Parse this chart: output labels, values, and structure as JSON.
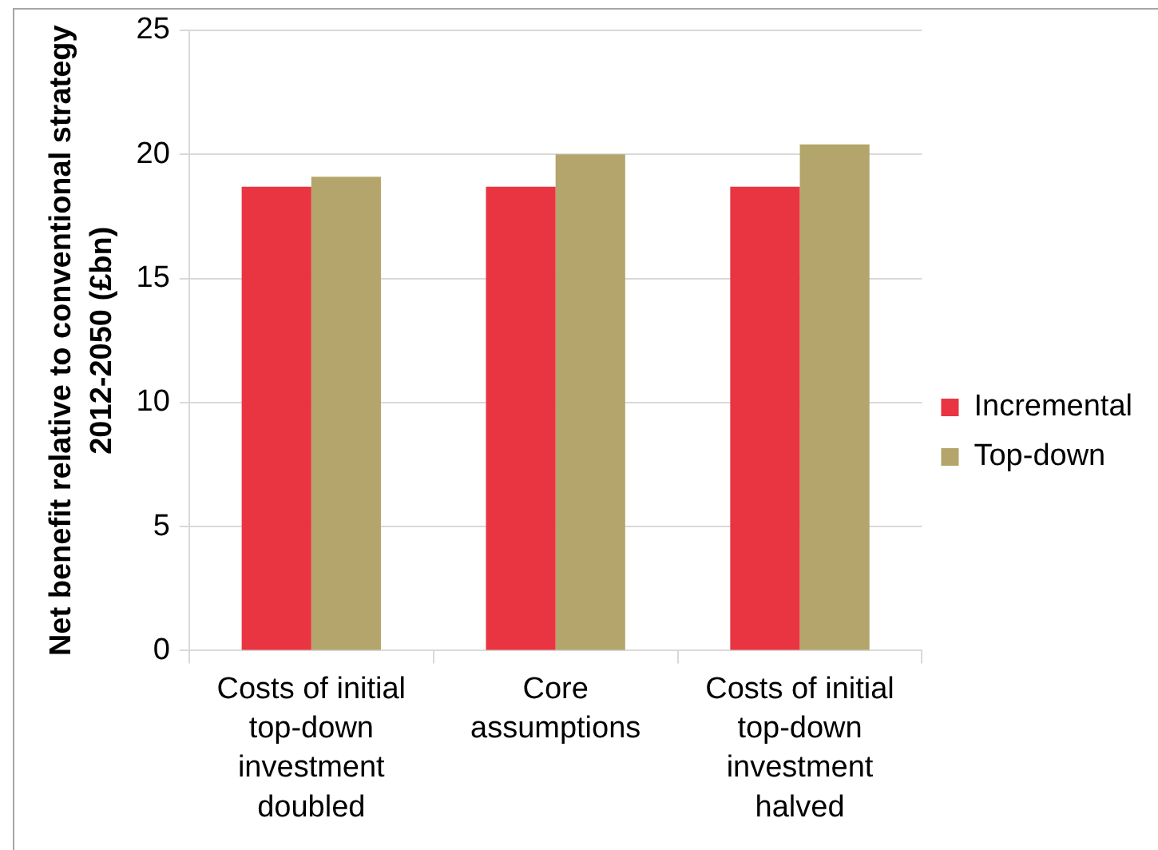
{
  "chart_data": {
    "type": "bar",
    "ylabel": "Net benefit relative to conventional strategy 2012-2050 (£bn)",
    "categories": [
      "Costs of initial top-down investment doubled",
      "Core assumptions",
      "Costs of initial top-down investment halved"
    ],
    "series": [
      {
        "name": "Incremental",
        "color": "#e83541",
        "values": [
          18.7,
          18.7,
          18.7
        ]
      },
      {
        "name": "Top-down",
        "color": "#b3a56b",
        "values": [
          19.1,
          20.0,
          20.4
        ]
      }
    ],
    "ylim": [
      0,
      25
    ],
    "yticks": [
      0,
      5,
      10,
      15,
      20,
      25
    ],
    "grid": "y",
    "legend": "right"
  }
}
